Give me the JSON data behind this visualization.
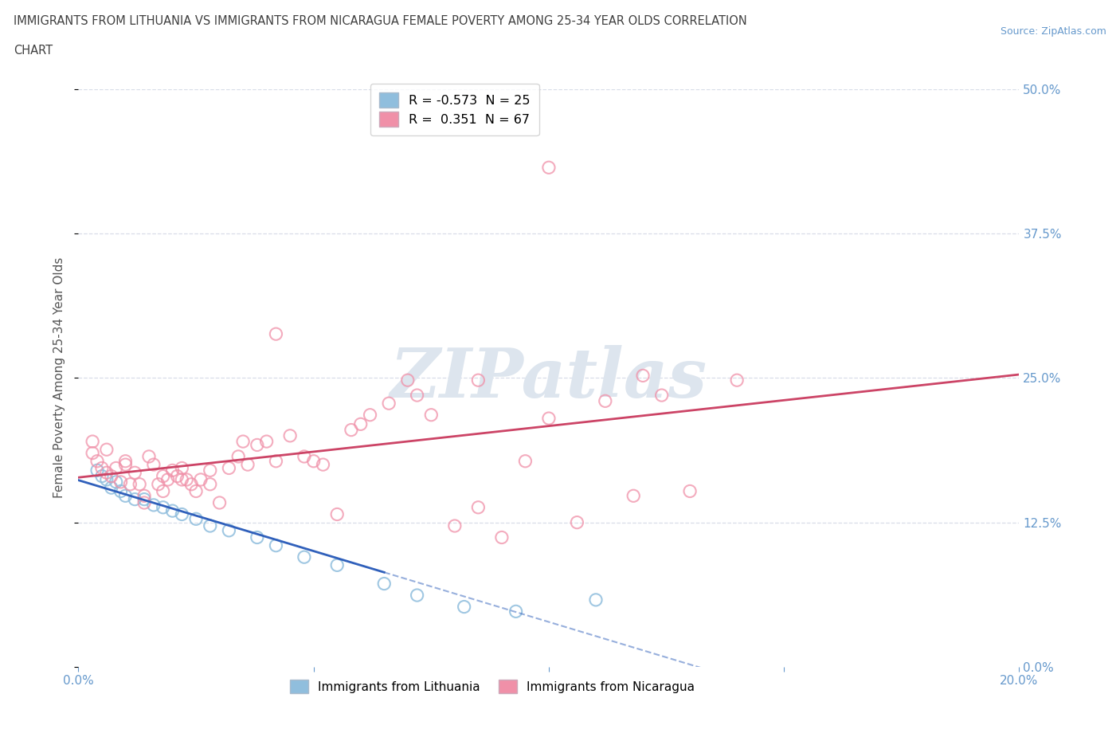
{
  "title_line1": "IMMIGRANTS FROM LITHUANIA VS IMMIGRANTS FROM NICARAGUA FEMALE POVERTY AMONG 25-34 YEAR OLDS CORRELATION",
  "title_line2": "CHART",
  "source_text": "Source: ZipAtlas.com",
  "ylabel": "Female Poverty Among 25-34 Year Olds",
  "xlim": [
    0.0,
    0.2
  ],
  "ylim": [
    0.0,
    0.5
  ],
  "ytick_positions": [
    0.0,
    0.125,
    0.25,
    0.375,
    0.5
  ],
  "xtick_positions": [
    0.0,
    0.05,
    0.1,
    0.15,
    0.2
  ],
  "blue_scatter_color": "#90bedd",
  "pink_scatter_color": "#f090a8",
  "blue_line_color": "#3060bb",
  "pink_line_color": "#cc4466",
  "axis_tick_color": "#6699cc",
  "title_color": "#404040",
  "background_color": "#ffffff",
  "grid_color": "#d8dde8",
  "watermark_color": "#dde5ee",
  "legend_R1": "R = -0.573",
  "legend_N1": "N = 25",
  "legend_R2": "R =  0.351",
  "legend_N2": "N = 67",
  "legend_bottom_1": "Immigrants from Lithuania",
  "legend_bottom_2": "Immigrants from Nicaragua",
  "lith_x": [
    0.004,
    0.005,
    0.006,
    0.007,
    0.008,
    0.009,
    0.01,
    0.012,
    0.014,
    0.016,
    0.018,
    0.02,
    0.022,
    0.025,
    0.028,
    0.032,
    0.038,
    0.042,
    0.048,
    0.055,
    0.065,
    0.072,
    0.082,
    0.093,
    0.11
  ],
  "lith_y": [
    0.17,
    0.165,
    0.162,
    0.155,
    0.16,
    0.152,
    0.148,
    0.145,
    0.145,
    0.14,
    0.138,
    0.135,
    0.132,
    0.128,
    0.122,
    0.118,
    0.112,
    0.105,
    0.095,
    0.088,
    0.072,
    0.062,
    0.052,
    0.048,
    0.058
  ],
  "nic_x": [
    0.003,
    0.004,
    0.005,
    0.006,
    0.007,
    0.008,
    0.009,
    0.01,
    0.011,
    0.012,
    0.013,
    0.014,
    0.015,
    0.016,
    0.017,
    0.018,
    0.019,
    0.02,
    0.021,
    0.022,
    0.023,
    0.024,
    0.025,
    0.026,
    0.028,
    0.03,
    0.032,
    0.034,
    0.036,
    0.038,
    0.04,
    0.042,
    0.045,
    0.048,
    0.052,
    0.055,
    0.058,
    0.062,
    0.066,
    0.07,
    0.075,
    0.08,
    0.085,
    0.09,
    0.095,
    0.1,
    0.106,
    0.112,
    0.118,
    0.124,
    0.13,
    0.003,
    0.006,
    0.01,
    0.014,
    0.018,
    0.022,
    0.028,
    0.035,
    0.042,
    0.05,
    0.06,
    0.072,
    0.085,
    0.1,
    0.12,
    0.14
  ],
  "nic_y": [
    0.185,
    0.178,
    0.172,
    0.168,
    0.165,
    0.172,
    0.16,
    0.175,
    0.158,
    0.168,
    0.158,
    0.148,
    0.182,
    0.175,
    0.158,
    0.165,
    0.162,
    0.17,
    0.165,
    0.172,
    0.162,
    0.158,
    0.152,
    0.162,
    0.158,
    0.142,
    0.172,
    0.182,
    0.175,
    0.192,
    0.195,
    0.178,
    0.2,
    0.182,
    0.175,
    0.132,
    0.205,
    0.218,
    0.228,
    0.248,
    0.218,
    0.122,
    0.138,
    0.112,
    0.178,
    0.215,
    0.125,
    0.23,
    0.148,
    0.235,
    0.152,
    0.195,
    0.188,
    0.178,
    0.142,
    0.152,
    0.162,
    0.17,
    0.195,
    0.288,
    0.178,
    0.21,
    0.235,
    0.248,
    0.432,
    0.252,
    0.248
  ]
}
